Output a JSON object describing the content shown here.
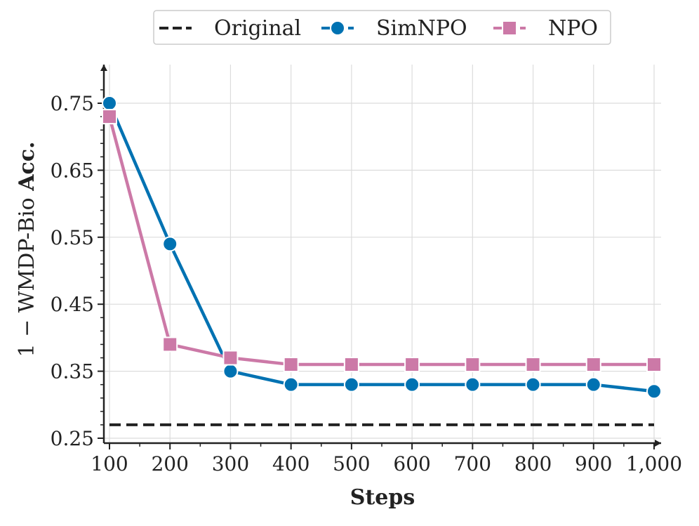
{
  "chart_data": {
    "type": "line",
    "xlabel": "Steps",
    "ylabel_prefix": "1 − WMDP-Bio ",
    "ylabel_bold": "Acc.",
    "x": [
      100,
      200,
      300,
      400,
      500,
      600,
      700,
      800,
      900,
      1000
    ],
    "x_tick_labels": [
      "100",
      "200",
      "300",
      "400",
      "500",
      "600",
      "700",
      "800",
      "900",
      "1,000"
    ],
    "y_ticks": [
      0.25,
      0.35,
      0.45,
      0.55,
      0.65,
      0.75
    ],
    "y_tick_labels": [
      "0.25",
      "0.35",
      "0.45",
      "0.55",
      "0.65",
      "0.75"
    ],
    "xlim": [
      100,
      1000
    ],
    "ylim": [
      0.24,
      0.8
    ],
    "grid": true,
    "legend_position": "top-center",
    "series": [
      {
        "name": "Original",
        "color": "#222222",
        "style": "dashed",
        "marker": "none",
        "values": [
          0.27,
          0.27,
          0.27,
          0.27,
          0.27,
          0.27,
          0.27,
          0.27,
          0.27,
          0.27
        ]
      },
      {
        "name": "SimNPO",
        "color": "#0072b2",
        "style": "solid",
        "marker": "circle",
        "values": [
          0.75,
          0.54,
          0.35,
          0.33,
          0.33,
          0.33,
          0.33,
          0.33,
          0.33,
          0.32
        ]
      },
      {
        "name": "NPO",
        "color": "#cc79a7",
        "style": "solid",
        "marker": "square",
        "values": [
          0.73,
          0.39,
          0.37,
          0.36,
          0.36,
          0.36,
          0.36,
          0.36,
          0.36,
          0.36
        ]
      }
    ]
  }
}
